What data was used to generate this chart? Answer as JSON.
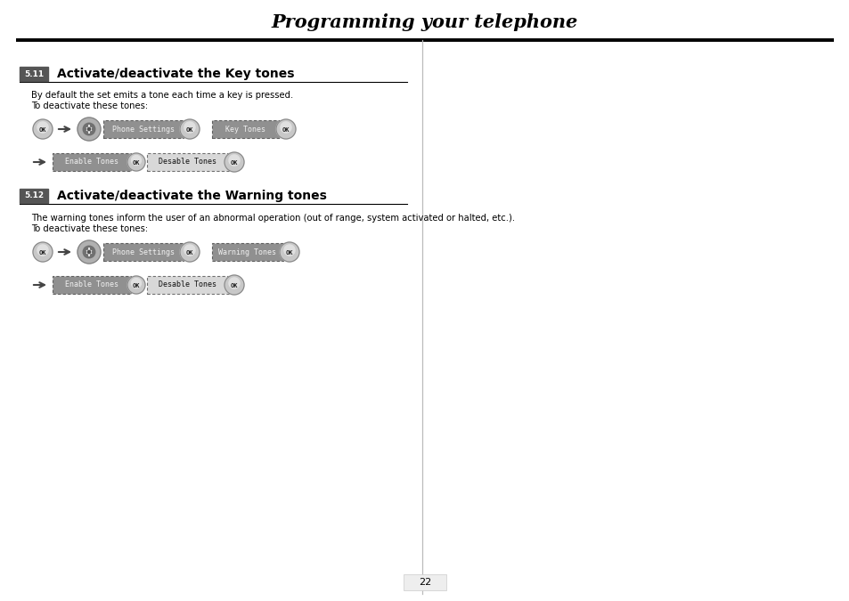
{
  "title": "Programming your telephone",
  "page_number": "22",
  "section1": {
    "number": "5.11",
    "heading": "Activate/deactivate the Key tones",
    "body_line1": "By default the set emits a tone each time a key is pressed.",
    "body_line2": "To deactivate these tones:"
  },
  "section2": {
    "number": "5.12",
    "heading": "Activate/deactivate the Warning tones",
    "body_line1": "The warning tones inform the user of an abnormal operation (out of range, system activated or halted, etc.).",
    "body_line2": "To deactivate these tones:"
  },
  "bg_color": "#ffffff",
  "text_color": "#000000"
}
